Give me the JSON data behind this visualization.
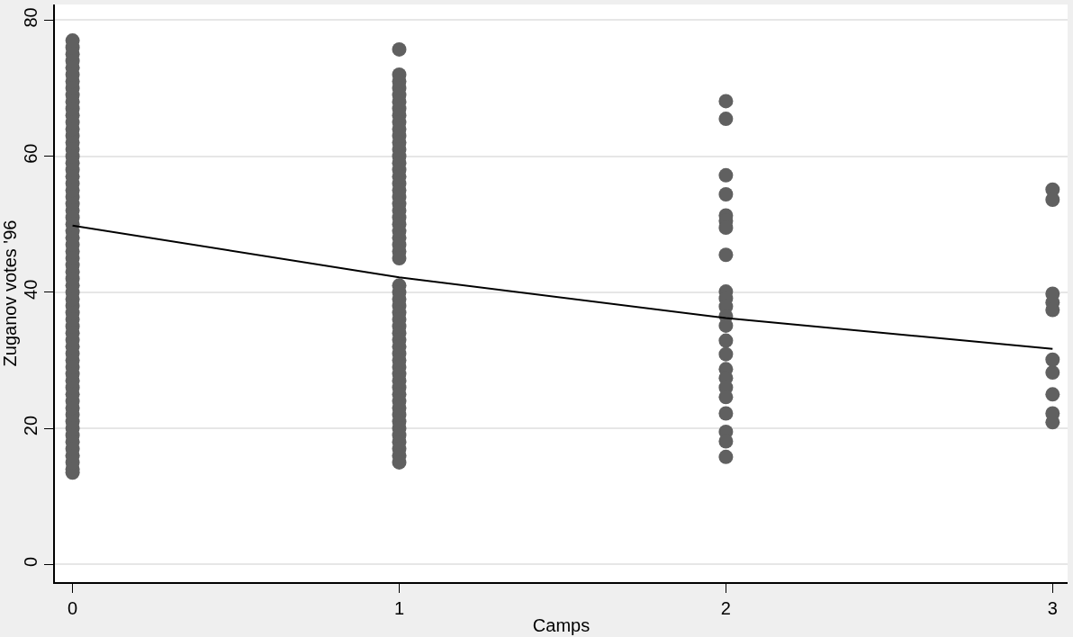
{
  "chart_data": {
    "type": "scatter",
    "xlabel": "Camps",
    "ylabel": "Zuganov votes '96",
    "xlim": [
      -0.054,
      3.046
    ],
    "ylim": [
      -2.6,
      82.3
    ],
    "xticks": [
      0,
      1,
      2,
      3
    ],
    "yticks": [
      0,
      20,
      40,
      60,
      80
    ],
    "grid": "y",
    "marker": "circle",
    "series": [
      {
        "color": "#606060",
        "x": [
          0,
          0,
          0,
          0,
          0,
          0,
          0,
          0,
          0,
          0,
          0,
          0,
          0,
          0,
          0,
          0,
          0,
          0,
          0,
          0,
          0,
          0,
          0,
          0,
          0,
          0,
          0,
          0,
          0,
          0,
          0,
          0,
          0,
          0,
          0,
          0,
          0,
          0,
          0,
          0,
          0,
          0,
          0,
          0,
          0,
          0,
          0,
          0,
          0,
          0,
          0,
          0,
          0,
          0,
          0,
          0,
          0,
          0,
          0,
          0,
          0,
          0,
          0,
          0,
          0,
          1,
          1,
          1,
          1,
          1,
          1,
          1,
          1,
          1,
          1,
          1,
          1,
          1,
          1,
          1,
          1,
          1,
          1,
          1,
          1,
          1,
          1,
          1,
          1,
          1,
          1,
          1,
          1,
          1,
          1,
          1,
          1,
          1,
          1,
          1,
          1,
          1,
          1,
          1,
          1,
          1,
          1,
          1,
          1,
          1,
          1,
          1,
          1,
          1,
          1,
          1,
          1,
          1,
          1,
          1,
          1,
          2,
          2,
          2,
          2,
          2,
          2,
          2,
          2,
          2,
          2,
          2,
          2,
          2,
          2,
          2,
          2,
          2,
          2,
          2,
          2,
          2,
          2,
          2,
          3,
          3,
          3,
          3,
          3,
          3,
          3,
          3,
          3,
          3
        ],
        "values": [
          13.5,
          14,
          15,
          16,
          17,
          18,
          19,
          20,
          21,
          22,
          23,
          24,
          25,
          26,
          27,
          28,
          29,
          30,
          31,
          32,
          33,
          34,
          35,
          36,
          37,
          38,
          39,
          40,
          41,
          42,
          43,
          44,
          45,
          46,
          47,
          48,
          49,
          50,
          51,
          52,
          53,
          54,
          55,
          56,
          57,
          58,
          59,
          60,
          61,
          62,
          63,
          64,
          65,
          66,
          67,
          68,
          69,
          70,
          71,
          72,
          73,
          74,
          75,
          76,
          77,
          75.7,
          72,
          71,
          70,
          69,
          68,
          67,
          66,
          65,
          64,
          63,
          62,
          61,
          60,
          59,
          58,
          57,
          56,
          55,
          54,
          53,
          52,
          51,
          50,
          49,
          48,
          47,
          46,
          45,
          41,
          40,
          39,
          38,
          37,
          36,
          35,
          34,
          33,
          32,
          31,
          30,
          29,
          28,
          27,
          26,
          25,
          24,
          23,
          22,
          21,
          20,
          19,
          18,
          17,
          16,
          15,
          68.1,
          65.5,
          57.2,
          54.4,
          51.3,
          50.5,
          49.5,
          45.5,
          40.1,
          39.1,
          37.9,
          36.5,
          35.1,
          32.9,
          30.9,
          28.7,
          27.4,
          26.0,
          24.6,
          22.2,
          19.5,
          18.1,
          15.8,
          55.1,
          53.6,
          39.8,
          38.5,
          37.4,
          30.1,
          28.2,
          25.0,
          22.2,
          20.9
        ]
      },
      {
        "type": "line",
        "color": "#000000",
        "marker": "none",
        "x": [
          0,
          1,
          2,
          3
        ],
        "values": [
          49.8,
          42.2,
          36.2,
          31.7
        ]
      }
    ]
  }
}
